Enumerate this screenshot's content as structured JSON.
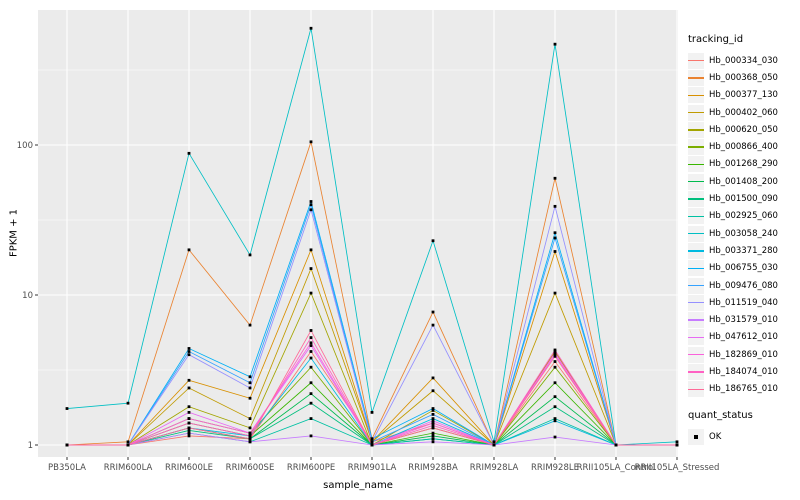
{
  "chart_data": {
    "type": "line",
    "title": "",
    "xlabel": "sample_name",
    "ylabel": "FPKM + 1",
    "y_scale": "log10",
    "y_ticks": [
      1,
      10,
      100
    ],
    "y_minor": [
      3.1623,
      31.623,
      316.23
    ],
    "ylim": [
      1,
      790
    ],
    "grid": true,
    "legend_position": "right",
    "panel_bg": "#EBEBEB",
    "grid_color": "#FFFFFF",
    "tick_text_color": "#4D4D4D",
    "point_color": "#000000",
    "categories": [
      "PB350LA",
      "RRIM600LA",
      "RRIM600LE",
      "RRIM600SE",
      "RRIM600PE",
      "RRIM901LA",
      "RRIM928BA",
      "RRIM928LA",
      "RRIM928LE",
      "RRII105LA_Control",
      "RRII105LA_Stressed"
    ],
    "series": [
      {
        "name": "Hb_000334_030",
        "color": "#F8766D",
        "values": [
          1.0,
          1.0,
          1.15,
          1.1,
          4.2,
          1.05,
          1.4,
          1.0,
          3.6,
          1.0,
          1.0
        ]
      },
      {
        "name": "Hb_000368_050",
        "color": "#EA8331",
        "values": [
          1.0,
          1.05,
          20,
          6.3,
          105,
          1.1,
          7.7,
          1.0,
          60,
          1.0,
          1.0
        ]
      },
      {
        "name": "Hb_000377_130",
        "color": "#D89000",
        "values": [
          1.0,
          1.0,
          2.7,
          2.05,
          20,
          1.05,
          2.8,
          1.0,
          19.5,
          1.0,
          1.0
        ]
      },
      {
        "name": "Hb_000402_060",
        "color": "#C09B00",
        "values": [
          1.0,
          1.0,
          2.4,
          1.5,
          15,
          1.05,
          2.3,
          1.0,
          10.3,
          1.0,
          1.0
        ]
      },
      {
        "name": "Hb_000620_050",
        "color": "#A3A500",
        "values": [
          1.0,
          1.0,
          1.8,
          1.3,
          10.3,
          1.0,
          1.7,
          1.0,
          4.2,
          1.0,
          1.0
        ]
      },
      {
        "name": "Hb_000866_400",
        "color": "#7CAE00",
        "values": [
          1.0,
          1.0,
          1.5,
          1.2,
          3.3,
          1.0,
          1.3,
          1.0,
          3.3,
          1.0,
          1.0
        ]
      },
      {
        "name": "Hb_001268_290",
        "color": "#39B600",
        "values": [
          1.0,
          1.0,
          1.4,
          1.15,
          2.6,
          1.0,
          1.2,
          1.0,
          2.6,
          1.0,
          1.0
        ]
      },
      {
        "name": "Hb_001408_200",
        "color": "#00BB4E",
        "values": [
          1.0,
          1.0,
          1.3,
          1.1,
          2.2,
          1.0,
          1.15,
          1.0,
          2.1,
          1.0,
          1.0
        ]
      },
      {
        "name": "Hb_001500_090",
        "color": "#00BF7D",
        "values": [
          1.0,
          1.0,
          1.25,
          1.1,
          1.9,
          1.0,
          1.1,
          1.0,
          1.8,
          1.0,
          1.0
        ]
      },
      {
        "name": "Hb_002925_060",
        "color": "#00C1A3",
        "values": [
          1.0,
          1.0,
          1.2,
          1.05,
          1.5,
          1.0,
          1.1,
          1.0,
          1.5,
          1.0,
          1.0
        ]
      },
      {
        "name": "Hb_003058_240",
        "color": "#00BFC4",
        "values": [
          1.75,
          1.9,
          88,
          18.5,
          600,
          1.65,
          23,
          1.05,
          470,
          1.0,
          1.05
        ]
      },
      {
        "name": "Hb_003371_280",
        "color": "#00BAE0",
        "values": [
          1.0,
          1.0,
          1.3,
          1.15,
          3.8,
          1.0,
          1.5,
          1.0,
          1.45,
          1.0,
          1.0
        ]
      },
      {
        "name": "Hb_006755_030",
        "color": "#00B0F6",
        "values": [
          1.0,
          1.0,
          4.4,
          2.85,
          42,
          1.1,
          1.75,
          1.0,
          26,
          1.0,
          1.0
        ]
      },
      {
        "name": "Hb_009476_080",
        "color": "#35A2FF",
        "values": [
          1.0,
          1.0,
          4.2,
          2.6,
          40,
          1.05,
          1.6,
          1.0,
          24,
          1.0,
          1.0
        ]
      },
      {
        "name": "Hb_011519_040",
        "color": "#9590FF",
        "values": [
          1.0,
          1.0,
          4.0,
          2.4,
          37,
          1.05,
          6.3,
          1.0,
          39,
          1.0,
          1.0
        ]
      },
      {
        "name": "Hb_031579_010",
        "color": "#C77CFF",
        "values": [
          1.0,
          1.0,
          1.2,
          1.05,
          1.15,
          1.0,
          1.05,
          1.0,
          1.13,
          1.0,
          1.0
        ]
      },
      {
        "name": "Hb_047612_010",
        "color": "#E76BF3",
        "values": [
          1.0,
          1.0,
          1.65,
          1.2,
          4.6,
          1.0,
          1.45,
          1.0,
          4.0,
          1.0,
          1.0
        ]
      },
      {
        "name": "Hb_182869_010",
        "color": "#FA62DB",
        "values": [
          1.0,
          1.0,
          1.5,
          1.2,
          4.8,
          1.0,
          1.4,
          1.0,
          4.1,
          1.0,
          1.0
        ]
      },
      {
        "name": "Hb_184074_010",
        "color": "#FF61C3",
        "values": [
          1.0,
          1.0,
          1.4,
          1.15,
          5.2,
          1.0,
          1.35,
          1.0,
          4.3,
          1.0,
          1.0
        ]
      },
      {
        "name": "Hb_186765_010",
        "color": "#FF6A98",
        "values": [
          1.0,
          1.0,
          1.3,
          1.1,
          5.8,
          1.0,
          1.3,
          1.0,
          3.9,
          1.0,
          1.0
        ]
      }
    ]
  },
  "legend": {
    "tracking_title": "tracking_id",
    "quant_title": "quant_status",
    "quant_items": [
      {
        "label": "OK"
      }
    ]
  }
}
